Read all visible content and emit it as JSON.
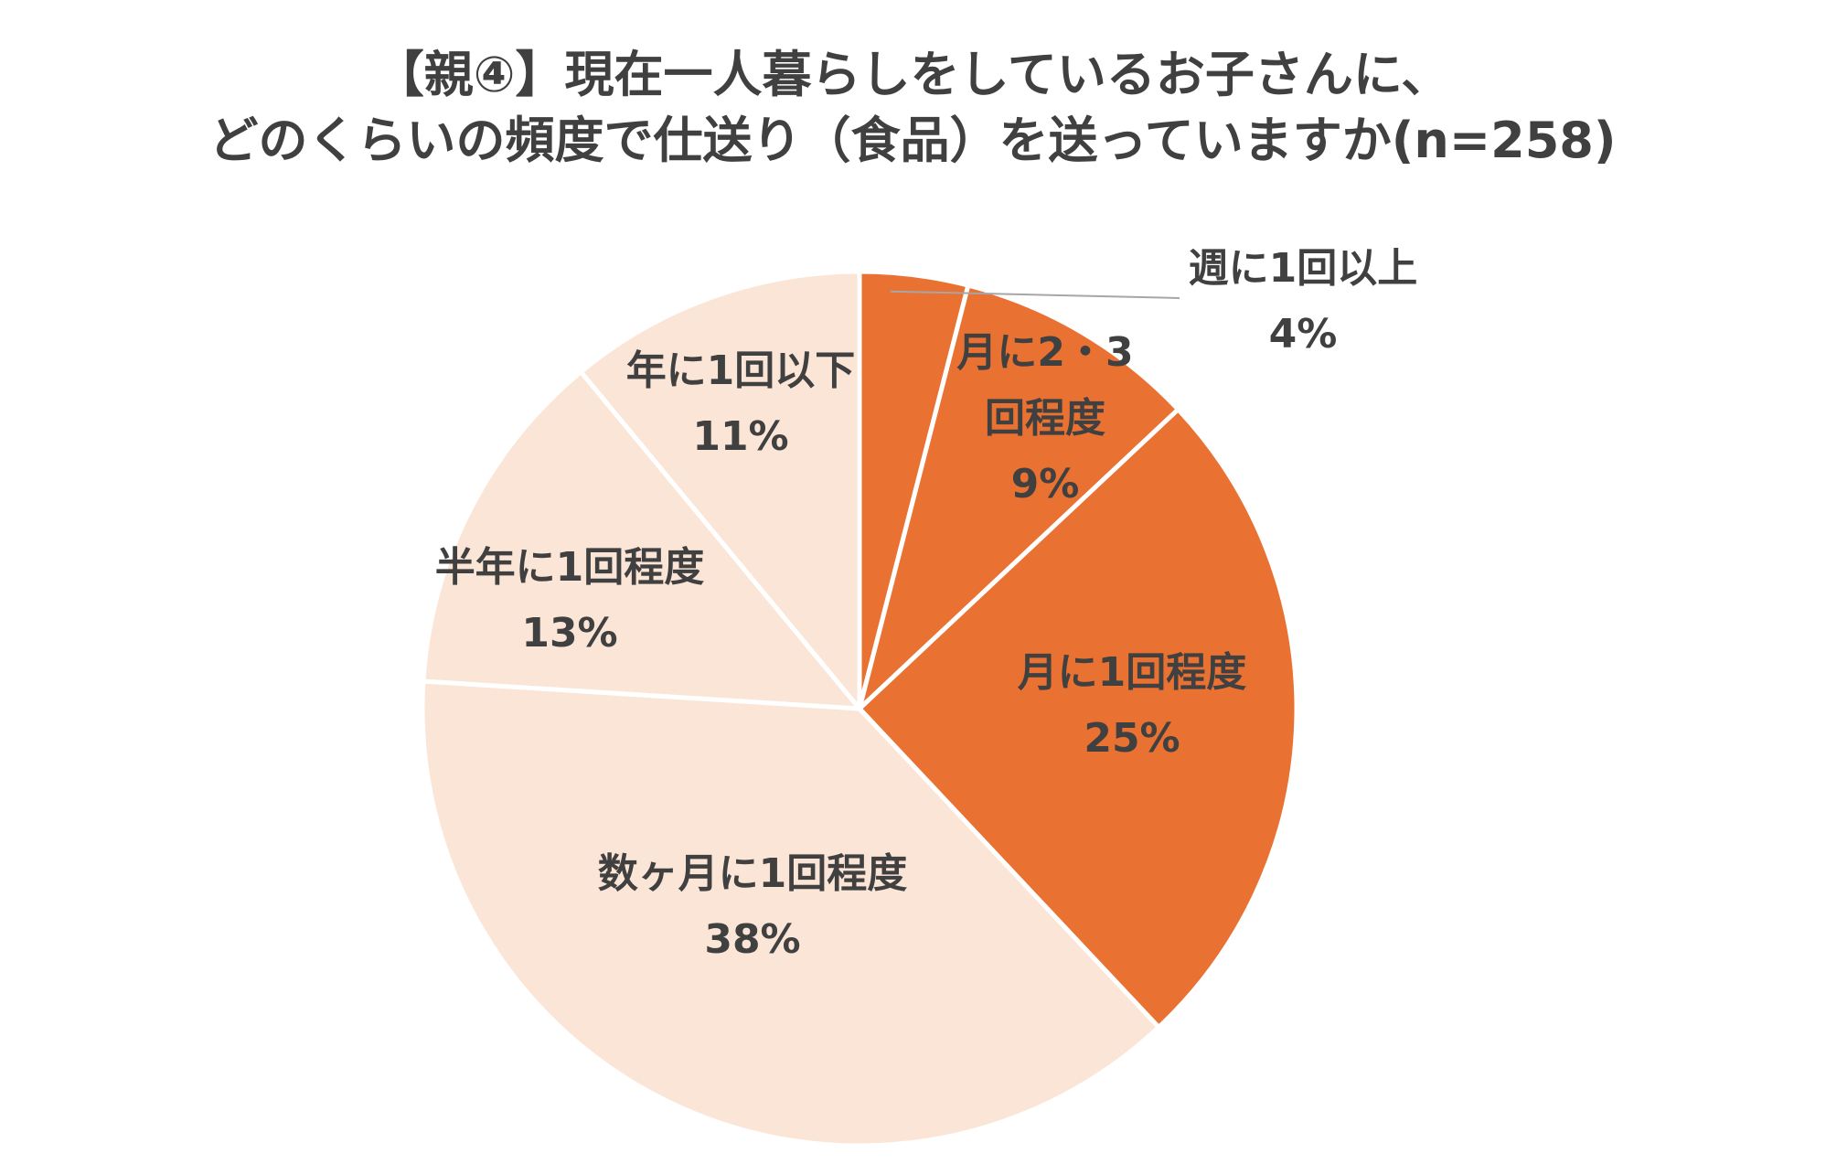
{
  "chart_data": {
    "type": "pie",
    "title": [
      "【親④】現在一人暮らしをしているお子さんに、",
      "どのくらいの頻度で仕送り（食品）を送っていますか(n=258)"
    ],
    "start_angle_deg": 0,
    "direction": "clockwise",
    "slices": [
      {
        "label": [
          "週に1回以上"
        ],
        "value": 4,
        "value_label": "4%",
        "color": "#E97132"
      },
      {
        "label": [
          "月に2・3",
          "回程度"
        ],
        "value": 9,
        "value_label": "9%",
        "color": "#E97132"
      },
      {
        "label": [
          "月に1回程度"
        ],
        "value": 25,
        "value_label": "25%",
        "color": "#E97132"
      },
      {
        "label": [
          "数ヶ月に1回程度"
        ],
        "value": 38,
        "value_label": "38%",
        "color": "#FBE5D6"
      },
      {
        "label": [
          "半年に1回程度"
        ],
        "value": 13,
        "value_label": "13%",
        "color": "#FBE5D6"
      },
      {
        "label": [
          "年に1回以下"
        ],
        "value": 11,
        "value_label": "11%",
        "color": "#FBE5D6"
      }
    ],
    "legend": "none"
  }
}
